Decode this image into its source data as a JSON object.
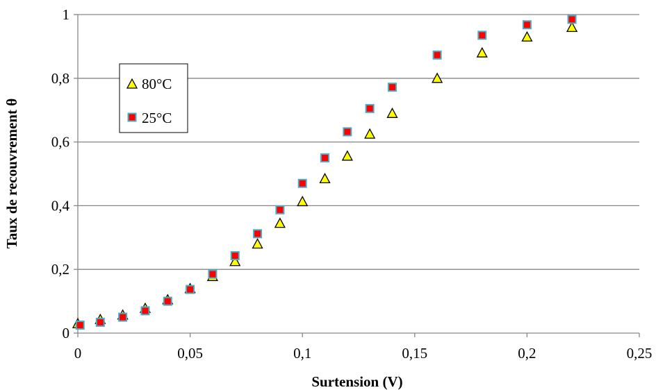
{
  "chart_data": {
    "type": "scatter",
    "title": "",
    "xlabel": "Surtension (V)",
    "ylabel": "Taux de recouvrement θ",
    "xlim": [
      0,
      0.25
    ],
    "ylim": [
      0,
      1
    ],
    "xticks": [
      "0",
      "0,05",
      "0,1",
      "0,15",
      "0,2",
      "0,25"
    ],
    "yticks": [
      "0",
      "0,2",
      "0,4",
      "0,6",
      "0,8",
      "1"
    ],
    "grid": "horizontal",
    "legend_position": "top-left",
    "series": [
      {
        "name": "80°C",
        "marker": "triangle",
        "fill": "#ffff00",
        "stroke": "#000000",
        "x": [
          0,
          0.01,
          0.02,
          0.03,
          0.04,
          0.05,
          0.06,
          0.07,
          0.08,
          0.09,
          0.1,
          0.11,
          0.12,
          0.13,
          0.14,
          0.16,
          0.18,
          0.2,
          0.22
        ],
        "y": [
          0.03,
          0.043,
          0.057,
          0.078,
          0.105,
          0.14,
          0.178,
          0.225,
          0.28,
          0.345,
          0.413,
          0.485,
          0.556,
          0.625,
          0.69,
          0.8,
          0.88,
          0.93,
          0.96
        ]
      },
      {
        "name": "25°C",
        "marker": "square",
        "fill": "#ff0000",
        "stroke": "#4bacc6",
        "x": [
          0.001,
          0.01,
          0.02,
          0.03,
          0.04,
          0.05,
          0.06,
          0.07,
          0.08,
          0.09,
          0.1,
          0.11,
          0.12,
          0.13,
          0.14,
          0.16,
          0.18,
          0.2,
          0.22
        ],
        "y": [
          0.025,
          0.034,
          0.05,
          0.07,
          0.1,
          0.137,
          0.185,
          0.243,
          0.312,
          0.387,
          0.47,
          0.55,
          0.632,
          0.705,
          0.772,
          0.873,
          0.935,
          0.968,
          0.985
        ]
      }
    ]
  }
}
